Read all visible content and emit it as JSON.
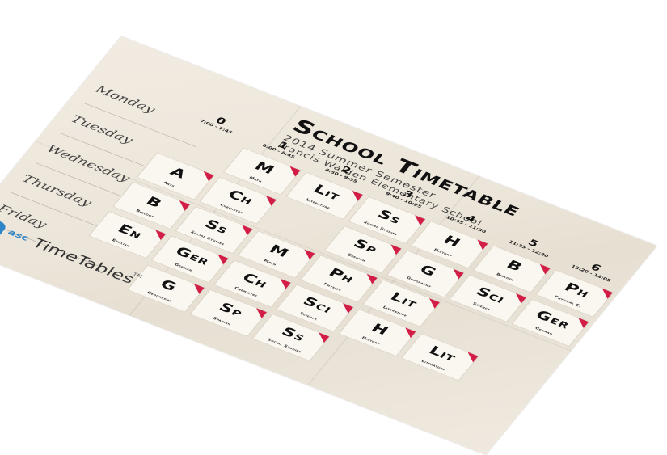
{
  "poster": {
    "title": "School Timetable",
    "subtitle": "2014 Summer Semester",
    "school": "Francis Walden Elementary School"
  },
  "days": [
    "Monday",
    "Tuesday",
    "Wednesday",
    "Thursday",
    "Friday"
  ],
  "periods": [
    {
      "num": "0",
      "time": "7:00 - 7:45"
    },
    {
      "num": "1",
      "time": "8:00 - 8:45"
    },
    {
      "num": "2",
      "time": "8:50 - 9:35"
    },
    {
      "num": "3",
      "time": "9:40 - 10:25"
    },
    {
      "num": "4",
      "time": "10:45 - 11:30"
    },
    {
      "num": "5",
      "time": "11:35 - 12:20"
    },
    {
      "num": "6",
      "time": "13:20 - 14:05"
    }
  ],
  "cells": [
    {
      "day": 0,
      "period": 1,
      "abbr": "M",
      "subject": "Math"
    },
    {
      "day": 0,
      "period": 2,
      "abbr": "Lit",
      "subject": "Literature"
    },
    {
      "day": 0,
      "period": 3,
      "abbr": "Ss",
      "subject": "Social Studies"
    },
    {
      "day": 0,
      "period": 4,
      "abbr": "H",
      "subject": "History"
    },
    {
      "day": 0,
      "period": 5,
      "abbr": "B",
      "subject": "Biology"
    },
    {
      "day": 0,
      "period": 6,
      "abbr": "Ph",
      "subject": "Physical E."
    },
    {
      "day": 1,
      "period": 0,
      "abbr": "A",
      "subject": "Arts"
    },
    {
      "day": 1,
      "period": 1,
      "abbr": "Ch",
      "subject": "Chemistry"
    },
    {
      "day": 1,
      "period": 3,
      "abbr": "Sp",
      "subject": "Spanish"
    },
    {
      "day": 1,
      "period": 4,
      "abbr": "G",
      "subject": "Geography"
    },
    {
      "day": 1,
      "period": 5,
      "abbr": "Sci",
      "subject": "Science"
    },
    {
      "day": 1,
      "period": 6,
      "abbr": "Ger",
      "subject": "German"
    },
    {
      "day": 2,
      "period": 0,
      "abbr": "B",
      "subject": "Biology"
    },
    {
      "day": 2,
      "period": 1,
      "abbr": "Ss",
      "subject": "Social Studies"
    },
    {
      "day": 2,
      "period": 2,
      "abbr": "M",
      "subject": "Math"
    },
    {
      "day": 2,
      "period": 3,
      "abbr": "Ph",
      "subject": "Physics"
    },
    {
      "day": 2,
      "period": 4,
      "abbr": "Lit",
      "subject": "Literature"
    },
    {
      "day": 3,
      "period": 0,
      "abbr": "En",
      "subject": "English"
    },
    {
      "day": 3,
      "period": 1,
      "abbr": "Ger",
      "subject": "German"
    },
    {
      "day": 3,
      "period": 2,
      "abbr": "Ch",
      "subject": "Chemistry"
    },
    {
      "day": 3,
      "period": 3,
      "abbr": "Sci",
      "subject": "Science"
    },
    {
      "day": 3,
      "period": 4,
      "abbr": "H",
      "subject": "History"
    },
    {
      "day": 3,
      "period": 5,
      "abbr": "Lit",
      "subject": "Literature"
    },
    {
      "day": 4,
      "period": 1,
      "abbr": "G",
      "subject": "Geography"
    },
    {
      "day": 4,
      "period": 2,
      "abbr": "Sp",
      "subject": "Spanish"
    },
    {
      "day": 4,
      "period": 3,
      "abbr": "Ss",
      "subject": "Social Studies"
    }
  ],
  "logo": {
    "asc": "asc",
    "brand": "TimeTables",
    "tm": "TM",
    "icon": "bell-icon",
    "color": "#2e86c9"
  },
  "colors": {
    "accent": "#d21d47",
    "paper": "#ede6da"
  }
}
